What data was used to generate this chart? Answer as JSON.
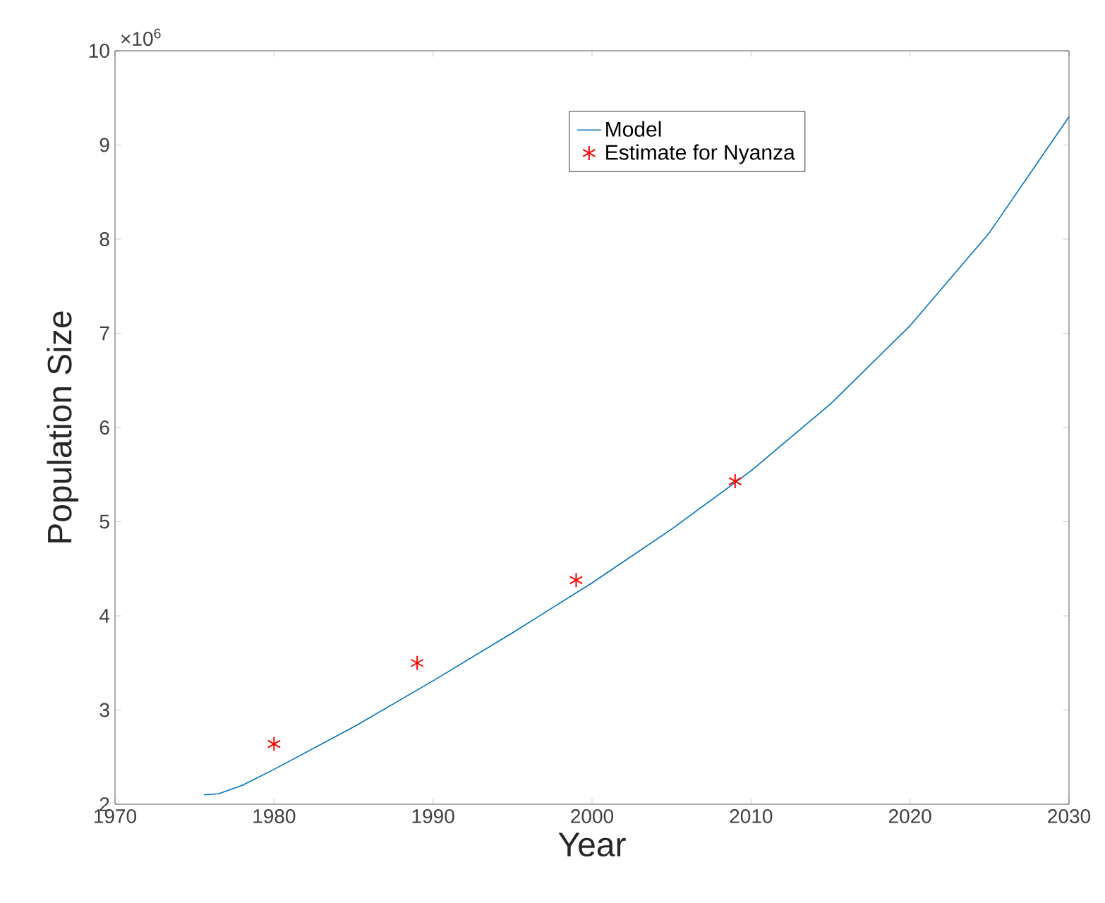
{
  "chart_data": {
    "type": "line",
    "xlabel": "Year",
    "ylabel": "Population Size",
    "annotations": [
      "×10$^{6}$"
    ],
    "xlim": [
      1970,
      2030
    ],
    "xticks": [
      1970,
      1980,
      1990,
      2000,
      2010,
      2020,
      2030
    ],
    "ylim": [
      2,
      10
    ],
    "yticks": [
      2,
      3,
      4,
      5,
      6,
      7,
      8,
      9,
      10
    ],
    "legend": "top right",
    "grid": false,
    "series": [
      {
        "name": "Model",
        "color": "#0072bd",
        "marker": "none",
        "line_style": "solid",
        "x": [
          1975.6,
          1976.5,
          1978,
          1980,
          1985,
          1990,
          1995,
          2000,
          2005,
          2010,
          2015,
          2020,
          2025,
          2030
        ],
        "values": [
          2.1,
          2.11,
          2.2,
          2.37,
          2.82,
          3.31,
          3.82,
          4.35,
          4.92,
          5.54,
          6.25,
          7.08,
          8.07,
          9.3
        ]
      },
      {
        "name": "Estimate for Nyanza",
        "type": "scatter",
        "color": "#ff0000",
        "marker": "cross",
        "x": [
          1980,
          1989,
          1999,
          2009
        ],
        "values": [
          2.64,
          3.5,
          4.38,
          5.43
        ]
      }
    ]
  }
}
